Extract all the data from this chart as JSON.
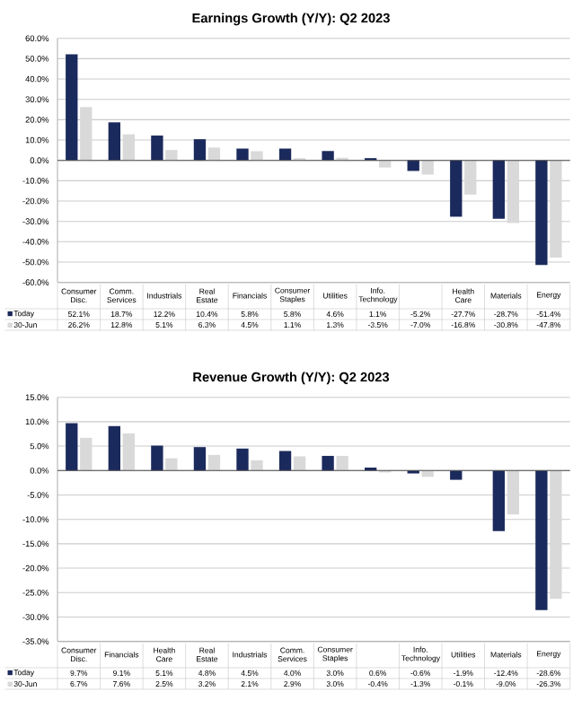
{
  "chart_data": [
    {
      "type": "bar",
      "title": "Earnings Growth (Y/Y): Q2 2023",
      "categories": [
        "Consumer Disc.",
        "Comm. Services",
        "Industrials",
        "Real Estate",
        "Financials",
        "Consumer Staples",
        "Utilities",
        "Info. Technology",
        null,
        "Health Care",
        "Materials",
        "Energy"
      ],
      "series": [
        {
          "name": "Today",
          "color": "#1b2a5c",
          "values": [
            52.1,
            18.7,
            12.2,
            10.4,
            5.8,
            5.8,
            4.6,
            1.1,
            -5.2,
            -27.7,
            -28.7,
            -51.4
          ],
          "value_labels": [
            "52.1%",
            "18.7%",
            "12.2%",
            "10.4%",
            "5.8%",
            "5.8%",
            "4.6%",
            "1.1%",
            "-5.2%",
            "-27.7%",
            "-28.7%",
            "-51.4%"
          ]
        },
        {
          "name": "30-Jun",
          "color": "#d9d9d9",
          "values": [
            26.2,
            12.8,
            5.1,
            6.3,
            4.5,
            1.1,
            1.3,
            -3.5,
            -7.0,
            -16.8,
            -30.8,
            -47.8
          ],
          "value_labels": [
            "26.2%",
            "12.8%",
            "5.1%",
            "6.3%",
            "4.5%",
            "1.1%",
            "1.3%",
            "-3.5%",
            "-7.0%",
            "-16.8%",
            "-30.8%",
            "-47.8%"
          ]
        }
      ],
      "ylim": [
        -60,
        60
      ],
      "yticks": [
        {
          "value": -60,
          "label": "-60.0%"
        },
        {
          "value": -50,
          "label": "-50.0%"
        },
        {
          "value": -40,
          "label": "-40.0%"
        },
        {
          "value": -30,
          "label": "-30.0%"
        },
        {
          "value": -20,
          "label": "-20.0%"
        },
        {
          "value": -10,
          "label": "-10.0%"
        },
        {
          "value": 0,
          "label": "0.0%"
        },
        {
          "value": 10,
          "label": "10.0%"
        },
        {
          "value": 20,
          "label": "20.0%"
        },
        {
          "value": 30,
          "label": "30.0%"
        },
        {
          "value": 40,
          "label": "40.0%"
        },
        {
          "value": 50,
          "label": "50.0%"
        },
        {
          "value": 60,
          "label": "60.0%"
        }
      ],
      "grid": "y",
      "legend": "bottom"
    },
    {
      "type": "bar",
      "title": "Revenue Growth (Y/Y): Q2 2023",
      "categories": [
        "Consumer Disc.",
        "Financials",
        "Health Care",
        "Real Estate",
        "Industrials",
        "Comm. Services",
        "Consumer Staples",
        null,
        "Info. Technology",
        "Utilities",
        "Materials",
        "Energy"
      ],
      "series": [
        {
          "name": "Today",
          "color": "#1b2a5c",
          "values": [
            9.7,
            9.1,
            5.1,
            4.8,
            4.5,
            4.0,
            3.0,
            0.6,
            -0.6,
            -1.9,
            -12.4,
            -28.6
          ],
          "value_labels": [
            "9.7%",
            "9.1%",
            "5.1%",
            "4.8%",
            "4.5%",
            "4.0%",
            "3.0%",
            "0.6%",
            "-0.6%",
            "-1.9%",
            "-12.4%",
            "-28.6%"
          ]
        },
        {
          "name": "30-Jun",
          "color": "#d9d9d9",
          "values": [
            6.7,
            7.6,
            2.5,
            3.2,
            2.1,
            2.9,
            3.0,
            -0.4,
            -1.3,
            -0.1,
            -9.0,
            -26.3
          ],
          "value_labels": [
            "6.7%",
            "7.6%",
            "2.5%",
            "3.2%",
            "2.1%",
            "2.9%",
            "3.0%",
            "-0.4%",
            "-1.3%",
            "-0.1%",
            "-9.0%",
            "-26.3%"
          ]
        }
      ],
      "ylim": [
        -35,
        15
      ],
      "yticks": [
        {
          "value": -35,
          "label": "-35.0%"
        },
        {
          "value": -30,
          "label": "-30.0%"
        },
        {
          "value": -25,
          "label": "-25.0%"
        },
        {
          "value": -20,
          "label": "-20.0%"
        },
        {
          "value": -15,
          "label": "-15.0%"
        },
        {
          "value": -10,
          "label": "-10.0%"
        },
        {
          "value": -5,
          "label": "-5.0%"
        },
        {
          "value": 0,
          "label": "0.0%"
        },
        {
          "value": 5,
          "label": "5.0%"
        },
        {
          "value": 10,
          "label": "10.0%"
        },
        {
          "value": 15,
          "label": "15.0%"
        }
      ],
      "grid": "y",
      "legend": "bottom"
    }
  ]
}
